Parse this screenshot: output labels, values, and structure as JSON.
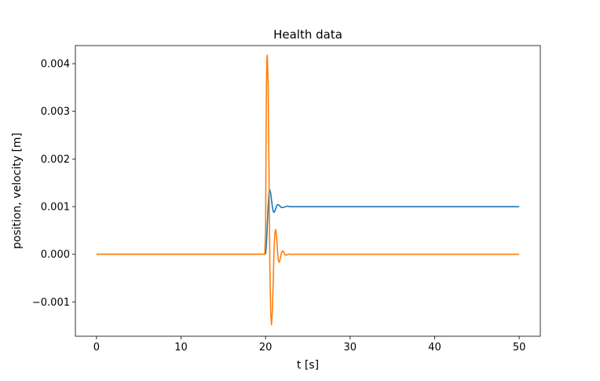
{
  "chart_data": {
    "type": "line",
    "title": "Health data",
    "xlabel": "t [s]",
    "ylabel": "position, velocity [m]",
    "xlim": [
      -2.5,
      52.5
    ],
    "ylim": [
      -0.00172,
      0.00438
    ],
    "xticks": [
      0,
      10,
      20,
      30,
      40,
      50
    ],
    "yticks": [
      -0.001,
      0.0,
      0.001,
      0.002,
      0.003,
      0.004
    ],
    "ytick_labels": [
      "−0.001",
      "0.000",
      "0.001",
      "0.002",
      "0.003",
      "0.004"
    ],
    "grid": false,
    "series": [
      {
        "color": "#1f77b4",
        "x": [
          0,
          19.9,
          20.0,
          20.1,
          20.2,
          20.3,
          20.4,
          20.5,
          20.6,
          20.7,
          20.8,
          20.9,
          21.0,
          21.1,
          21.2,
          21.3,
          21.4,
          21.5,
          21.6,
          21.7,
          21.8,
          21.9,
          22.0,
          22.2,
          22.4,
          22.6,
          22.8,
          23.0,
          23.2,
          23.5,
          24.0,
          50
        ],
        "y": [
          0,
          0,
          1e-05,
          0.0002,
          0.0006,
          0.001,
          0.00128,
          0.00135,
          0.00128,
          0.00114,
          0.001,
          0.0009,
          0.00088,
          0.00091,
          0.00096,
          0.00101,
          0.00104,
          0.00104,
          0.00103,
          0.00101,
          0.00099,
          0.00098,
          0.00098,
          0.00099,
          0.001,
          0.00101,
          0.001,
          0.001,
          0.001,
          0.001,
          0.001,
          0.001
        ]
      },
      {
        "color": "#ff7f0e",
        "x": [
          0,
          19.9,
          20.0,
          20.05,
          20.1,
          20.15,
          20.2,
          20.3,
          20.4,
          20.5,
          20.6,
          20.7,
          20.8,
          20.9,
          21.0,
          21.1,
          21.2,
          21.3,
          21.4,
          21.5,
          21.6,
          21.7,
          21.8,
          21.9,
          22.0,
          22.1,
          22.2,
          22.3,
          22.4,
          22.5,
          22.6,
          22.7,
          22.8,
          23.0,
          23.2,
          23.5,
          24.0,
          50
        ],
        "y": [
          0,
          0,
          0.0005,
          0.0022,
          0.0035,
          0.0041,
          0.00418,
          0.0036,
          0.0018,
          -0.0002,
          -0.0012,
          -0.00148,
          -0.0012,
          -0.0006,
          0.0001,
          0.00045,
          0.00052,
          0.00038,
          0.0001,
          -0.00012,
          -0.00017,
          -0.00012,
          -3e-05,
          4e-05,
          7e-05,
          6e-05,
          2e-05,
          -1e-05,
          -2e-05,
          -1.5e-05,
          -5e-06,
          3e-06,
          4e-06,
          0,
          -2e-06,
          0,
          0,
          0
        ]
      }
    ]
  }
}
